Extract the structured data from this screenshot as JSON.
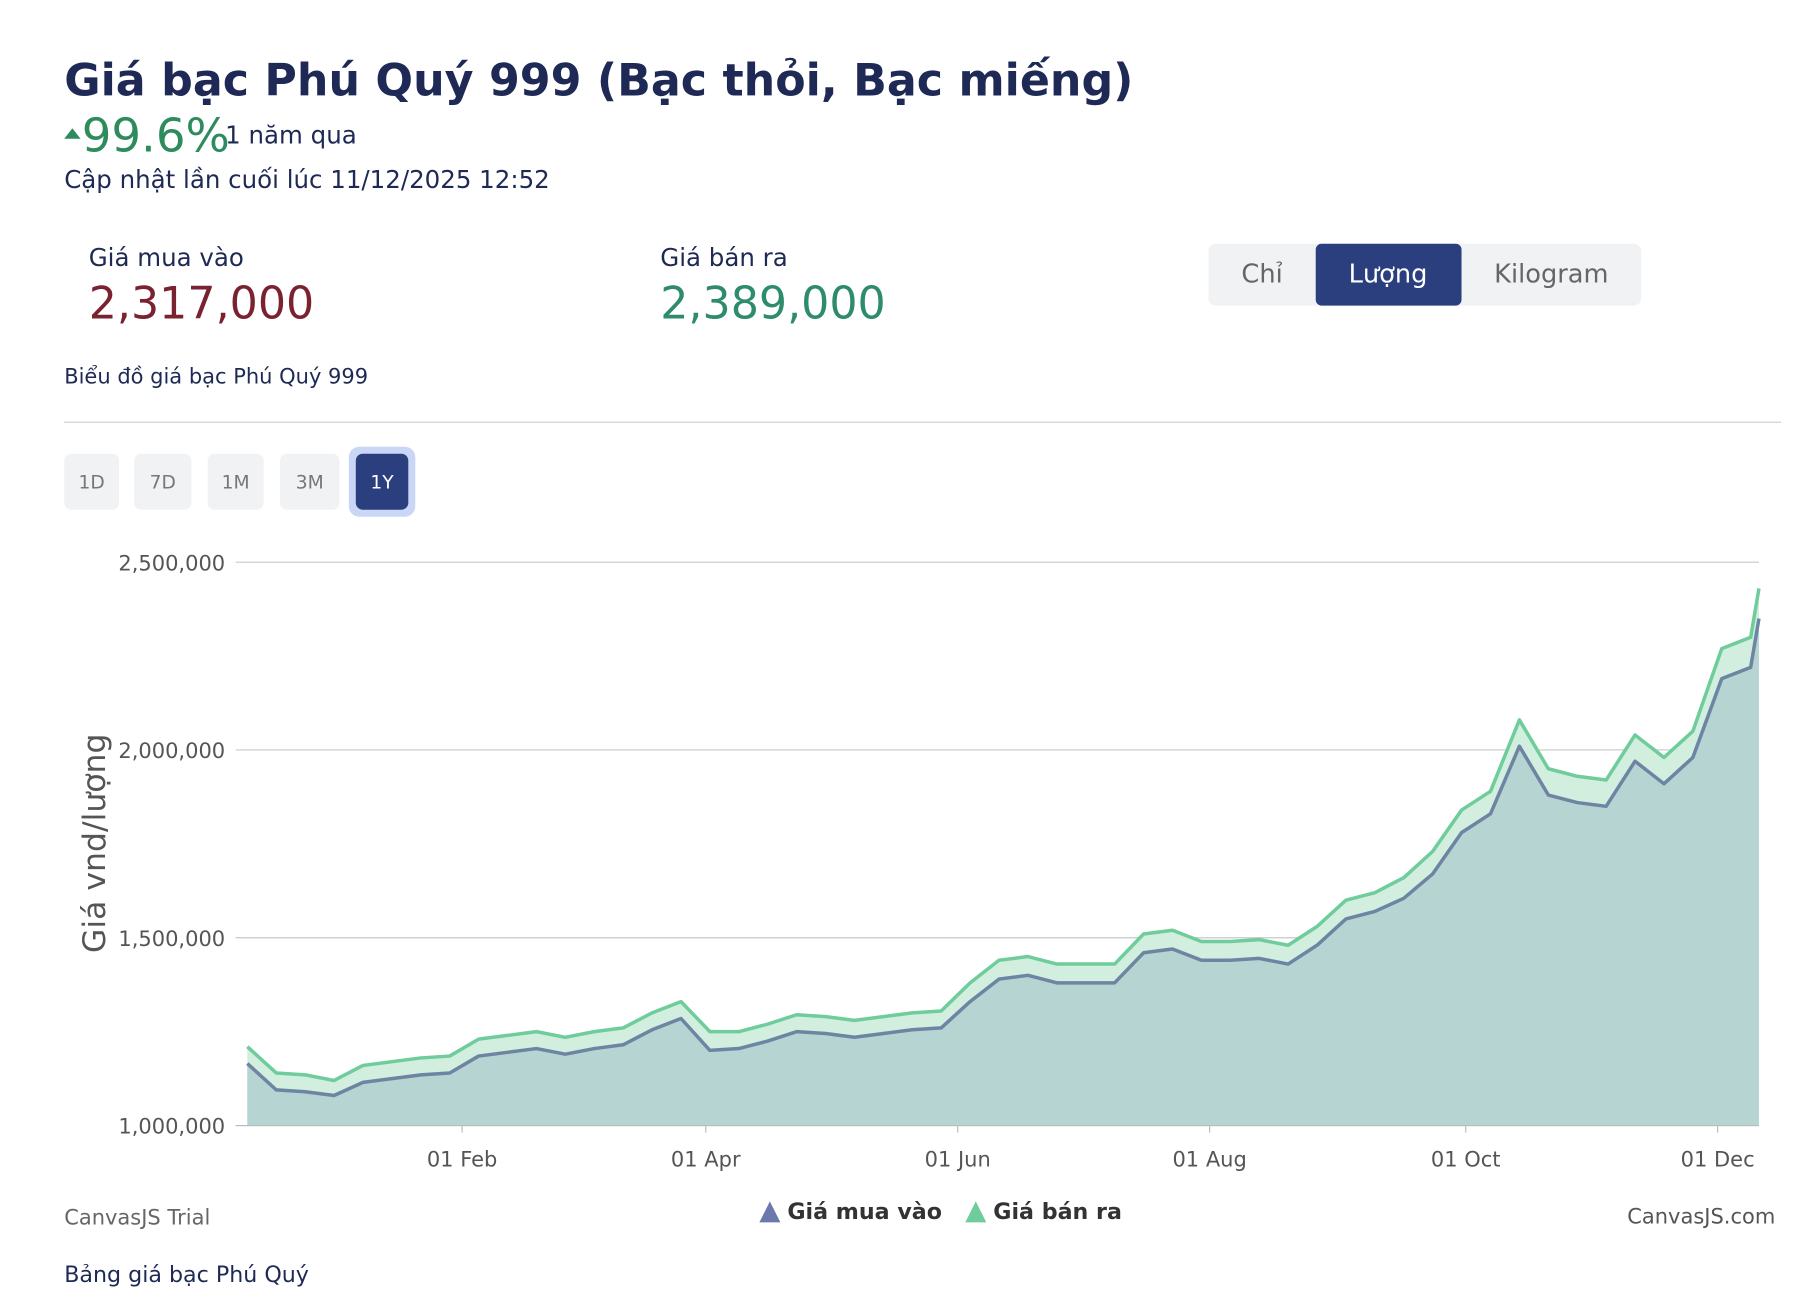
{
  "header": {
    "title": "Giá bạc Phú Quý 999 (Bạc thỏi, Bạc miếng)",
    "change": "99.6%",
    "period": "1 năm qua",
    "updated": "Cập nhật lần cuối lúc 11/12/2025 12:52"
  },
  "prices": {
    "buy_label": "Giá mua vào",
    "buy_value": "2,317,000",
    "sell_label": "Giá bán ra",
    "sell_value": "2,389,000"
  },
  "unit_tabs": [
    "Chỉ",
    "Lượng",
    "Kilogram"
  ],
  "chart_title": "Biểu đồ giá bạc Phú Quý 999",
  "range_buttons": [
    "1D",
    "7D",
    "1M",
    "3M",
    "1Y"
  ],
  "chart_data": {
    "type": "area",
    "y_label": "Giá vnd/lượng",
    "x": [
      0,
      7,
      14,
      21,
      28,
      35,
      42,
      49,
      56,
      63,
      70,
      77,
      84,
      91,
      98,
      105,
      112,
      119,
      126,
      133,
      140,
      147,
      154,
      161,
      168,
      175,
      182,
      189,
      196,
      203,
      210,
      217,
      224,
      231,
      238,
      245,
      252,
      259,
      266,
      273,
      280,
      287,
      294,
      301,
      308,
      315,
      322,
      329,
      336,
      343,
      350,
      357,
      364,
      366
    ],
    "series": [
      {
        "name": "Giá mua vào",
        "color": "#6d85a3",
        "legend_color": "#6b7aab",
        "values": [
          1165000,
          1095000,
          1090000,
          1080000,
          1115000,
          1125000,
          1135000,
          1140000,
          1185000,
          1195000,
          1205000,
          1190000,
          1205000,
          1215000,
          1255000,
          1285000,
          1200000,
          1205000,
          1225000,
          1250000,
          1245000,
          1235000,
          1245000,
          1255000,
          1260000,
          1330000,
          1390000,
          1400000,
          1380000,
          1380000,
          1380000,
          1460000,
          1470000,
          1440000,
          1440000,
          1445000,
          1430000,
          1480000,
          1550000,
          1570000,
          1605000,
          1670000,
          1780000,
          1830000,
          2010000,
          1880000,
          1860000,
          1850000,
          1970000,
          1910000,
          1980000,
          2190000,
          2220000,
          2350000
        ]
      },
      {
        "name": "Giá bán ra",
        "color": "#6fcc9b",
        "legend_color": "#6fcc9b",
        "values": [
          1210000,
          1140000,
          1135000,
          1120000,
          1160000,
          1170000,
          1180000,
          1185000,
          1230000,
          1240000,
          1250000,
          1235000,
          1250000,
          1260000,
          1300000,
          1330000,
          1250000,
          1250000,
          1270000,
          1295000,
          1290000,
          1280000,
          1290000,
          1300000,
          1305000,
          1380000,
          1440000,
          1450000,
          1430000,
          1430000,
          1430000,
          1510000,
          1520000,
          1490000,
          1490000,
          1495000,
          1480000,
          1530000,
          1600000,
          1620000,
          1660000,
          1730000,
          1840000,
          1890000,
          2080000,
          1950000,
          1930000,
          1920000,
          2040000,
          1980000,
          2050000,
          2270000,
          2300000,
          2430000
        ]
      }
    ],
    "xlim": [
      0,
      366
    ],
    "xticks": [
      {
        "value": 52,
        "label": "01 Feb"
      },
      {
        "value": 111,
        "label": "01 Apr"
      },
      {
        "value": 172,
        "label": "01 Jun"
      },
      {
        "value": 233,
        "label": "01 Aug"
      },
      {
        "value": 295,
        "label": "01 Oct"
      },
      {
        "value": 356,
        "label": "01 Dec"
      }
    ],
    "ylim": [
      1000000,
      2500000
    ],
    "yticks": [
      {
        "value": 1000000,
        "label": "1,000,000"
      },
      {
        "value": 1500000,
        "label": "1,500,000"
      },
      {
        "value": 2000000,
        "label": "2,000,000"
      },
      {
        "value": 2500000,
        "label": "2,500,000"
      }
    ],
    "grid": true,
    "legend": "bottom"
  },
  "credit": "CanvasJS Trial",
  "credit_link": "CanvasJS.com",
  "table_title": "Bảng giá bạc Phú Quý"
}
